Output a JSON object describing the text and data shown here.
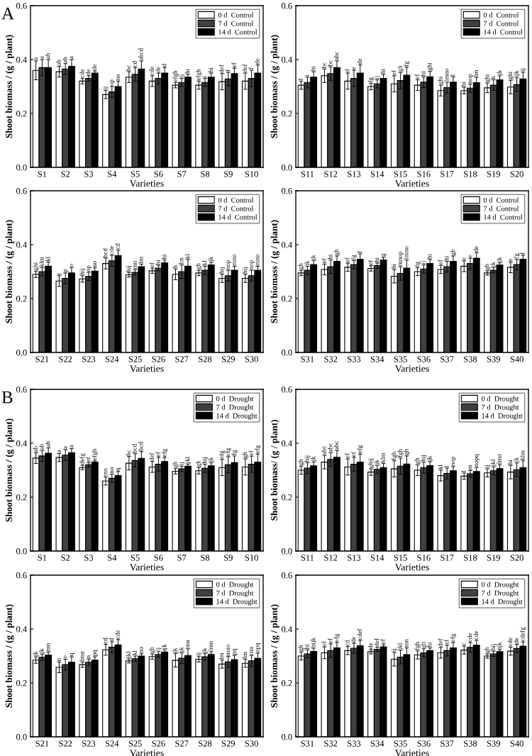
{
  "chart_data": [
    {
      "type": "bar",
      "annotations": [
        "A"
      ],
      "xlabel": "Varieties",
      "ylabel": "Shoot biomass / (g / plant)",
      "categories": [
        "S1",
        "S2",
        "S3",
        "S4",
        "S5",
        "S6",
        "S7",
        "S8",
        "S9",
        "S10"
      ],
      "ylim": [
        0,
        0.6
      ],
      "yticks": [
        {
          "value": 0,
          "label": "0.0"
        },
        {
          "value": 0.2,
          "label": "0.2"
        },
        {
          "value": 0.4,
          "label": "0.4"
        },
        {
          "value": 0.6,
          "label": "0.6"
        }
      ],
      "legend": "top right",
      "grid": false,
      "series": [
        {
          "name": "0 d  Control",
          "color": "#ffffff",
          "values": [
            0.36,
            0.355,
            0.32,
            0.27,
            0.335,
            0.32,
            0.305,
            0.305,
            0.318,
            0.32
          ],
          "errors": [
            0.035,
            0.02,
            0.01,
            0.015,
            0.02,
            0.02,
            0.01,
            0.015,
            0.03,
            0.03
          ],
          "value_labels": [
            "a",
            "ab",
            "cde",
            "ij",
            "bc",
            "cde",
            "efgh",
            "efgh",
            "def",
            "def"
          ]
        },
        {
          "name": "7 d  Control",
          "color": "#404040",
          "values": [
            0.37,
            0.365,
            0.33,
            0.28,
            0.345,
            0.33,
            0.315,
            0.315,
            0.328,
            0.33
          ],
          "errors": [
            0.03,
            0.02,
            0.01,
            0.02,
            0.025,
            0.02,
            0.015,
            0.015,
            0.025,
            0.03
          ],
          "value_labels": [
            "a",
            "ab",
            "de",
            "op",
            "cd",
            "de",
            "ij",
            "i",
            "f",
            "f"
          ]
        },
        {
          "name": "14 d  Control",
          "color": "#000000",
          "values": [
            0.37,
            0.375,
            0.35,
            0.3,
            0.365,
            0.35,
            0.335,
            0.335,
            0.348,
            0.35
          ],
          "errors": [
            0.03,
            0.025,
            0.008,
            0.02,
            0.03,
            0.02,
            0.01,
            0.015,
            0.02,
            0.03
          ],
          "value_labels": [
            "ab",
            "a",
            "de",
            "no",
            "abcd",
            "d",
            "hi",
            "hi",
            "ef",
            "de"
          ]
        }
      ]
    },
    {
      "type": "bar",
      "xlabel": "Varieties",
      "ylabel": "Shoot biomass / (g / plant)",
      "categories": [
        "S11",
        "S12",
        "S13",
        "S14",
        "S15",
        "S16",
        "S17",
        "S18",
        "S19",
        "S20"
      ],
      "ylim": [
        0,
        0.6
      ],
      "yticks": [
        {
          "value": 0,
          "label": "0.0"
        },
        {
          "value": 0.2,
          "label": "0.2"
        },
        {
          "value": 0.4,
          "label": "0.4"
        },
        {
          "value": 0.6,
          "label": "0.6"
        }
      ],
      "legend": "top right",
      "grid": false,
      "series": [
        {
          "name": "0 d  Control",
          "color": "#ffffff",
          "values": [
            0.305,
            0.34,
            0.32,
            0.3,
            0.31,
            0.305,
            0.285,
            0.285,
            0.295,
            0.298
          ],
          "errors": [
            0.015,
            0.025,
            0.03,
            0.012,
            0.03,
            0.02,
            0.02,
            0.012,
            0.018,
            0.025
          ],
          "value_labels": [
            "f",
            "bc",
            "d",
            "fg",
            "ef",
            "ef",
            "ghi",
            "hi",
            "ghi",
            "ghi"
          ]
        },
        {
          "name": "7 d  Control",
          "color": "#404040",
          "values": [
            0.315,
            0.348,
            0.33,
            0.31,
            0.322,
            0.316,
            0.296,
            0.294,
            0.305,
            0.307
          ],
          "errors": [
            0.02,
            0.025,
            0.03,
            0.015,
            0.03,
            0.02,
            0.02,
            0.015,
            0.02,
            0.025
          ],
          "value_labels": [
            "i",
            "bc",
            "e",
            "ij",
            "gh",
            "hi",
            "lmno",
            "nop",
            "k",
            "ijk"
          ]
        },
        {
          "name": "14 d  Control",
          "color": "#000000",
          "values": [
            0.335,
            0.37,
            0.35,
            0.33,
            0.342,
            0.336,
            0.316,
            0.314,
            0.325,
            0.328
          ],
          "errors": [
            0.02,
            0.025,
            0.03,
            0.015,
            0.03,
            0.02,
            0.02,
            0.02,
            0.015,
            0.025
          ],
          "value_labels": [
            "hi",
            "abc",
            "de",
            "hi",
            "fg",
            "ghi",
            "l",
            "lm",
            "jk",
            "ij"
          ]
        }
      ]
    },
    {
      "type": "bar",
      "xlabel": "Varieties",
      "ylabel": "Shoot biomass / (g / plant)",
      "categories": [
        "S21",
        "S22",
        "S23",
        "S24",
        "S25",
        "S26",
        "S27",
        "S28",
        "S29",
        "S30"
      ],
      "ylim": [
        0,
        0.6
      ],
      "yticks": [
        {
          "value": 0,
          "label": "0.0"
        },
        {
          "value": 0.2,
          "label": "0.2"
        },
        {
          "value": 0.4,
          "label": "0.4"
        },
        {
          "value": 0.6,
          "label": "0.6"
        }
      ],
      "legend": "top right",
      "grid": false,
      "series": [
        {
          "name": "0 d  Control",
          "color": "#ffffff",
          "values": [
            0.29,
            0.265,
            0.273,
            0.33,
            0.288,
            0.303,
            0.29,
            0.295,
            0.275,
            0.275
          ],
          "errors": [
            0.012,
            0.02,
            0.012,
            0.02,
            0.008,
            0.01,
            0.02,
            0.01,
            0.015,
            0.015
          ],
          "value_labels": [
            "ghi",
            "j",
            "hij",
            "bcd",
            "hij",
            "ef",
            "h",
            "gh",
            "hij",
            "hij"
          ]
        },
        {
          "name": "7 d  Control",
          "color": "#404040",
          "values": [
            0.3,
            0.275,
            0.282,
            0.34,
            0.297,
            0.313,
            0.3,
            0.305,
            0.285,
            0.285
          ],
          "errors": [
            0.015,
            0.02,
            0.015,
            0.02,
            0.01,
            0.01,
            0.025,
            0.015,
            0.02,
            0.02
          ],
          "value_labels": [
            "klm",
            "p",
            "op",
            "cde",
            "mn",
            "hi",
            "lm",
            "kl",
            "nop",
            "nop"
          ]
        },
        {
          "name": "14 d  Control",
          "color": "#000000",
          "values": [
            0.32,
            0.295,
            0.302,
            0.36,
            0.318,
            0.333,
            0.32,
            0.325,
            0.305,
            0.305
          ],
          "errors": [
            0.015,
            0.02,
            0.012,
            0.02,
            0.01,
            0.01,
            0.025,
            0.01,
            0.015,
            0.015
          ],
          "value_labels": [
            "kl",
            "o",
            "no",
            "cd",
            "lm",
            "hi",
            "kl",
            "jk",
            "mno",
            "mno"
          ]
        }
      ]
    },
    {
      "type": "bar",
      "xlabel": "Varieties",
      "ylabel": "Shoot biomass / (g / plant)",
      "categories": [
        "S31",
        "S32",
        "S33",
        "S34",
        "S35",
        "S36",
        "S37",
        "S38",
        "S39",
        "S40"
      ],
      "ylim": [
        0,
        0.6
      ],
      "yticks": [
        {
          "value": 0,
          "label": "0.0"
        },
        {
          "value": 0.2,
          "label": "0.2"
        },
        {
          "value": 0.4,
          "label": "0.4"
        },
        {
          "value": 0.6,
          "label": "0.6"
        }
      ],
      "legend": "top right",
      "grid": false,
      "series": [
        {
          "name": "0 d  Control",
          "color": "#ffffff",
          "values": [
            0.295,
            0.308,
            0.316,
            0.312,
            0.283,
            0.3,
            0.308,
            0.32,
            0.295,
            0.316
          ],
          "errors": [
            0.01,
            0.02,
            0.015,
            0.01,
            0.025,
            0.015,
            0.015,
            0.02,
            0.008,
            0.02
          ],
          "value_labels": [
            "gh",
            "ef",
            "ef",
            "ef",
            "hi",
            "fg",
            "ef",
            "e",
            "gh",
            "e"
          ]
        },
        {
          "name": "7 d  Control",
          "color": "#404040",
          "values": [
            0.305,
            0.318,
            0.326,
            0.322,
            0.293,
            0.31,
            0.318,
            0.33,
            0.305,
            0.326
          ],
          "errors": [
            0.015,
            0.025,
            0.015,
            0.01,
            0.025,
            0.015,
            0.02,
            0.02,
            0.01,
            0.02
          ],
          "value_labels": [
            "ik",
            "hi",
            "fg",
            "hi",
            "mnop",
            "ij",
            "hi",
            "e",
            "jk",
            "fg"
          ]
        },
        {
          "name": "14 d  Control",
          "color": "#000000",
          "values": [
            0.326,
            0.338,
            0.346,
            0.343,
            0.313,
            0.33,
            0.338,
            0.35,
            0.325,
            0.346
          ],
          "errors": [
            0.015,
            0.02,
            0.02,
            0.01,
            0.03,
            0.015,
            0.02,
            0.02,
            0.008,
            0.015
          ],
          "value_labels": [
            "jk",
            "gh",
            "f",
            "g",
            "lmno",
            "hi",
            "gh",
            "de",
            "jk",
            "f"
          ]
        }
      ]
    },
    {
      "type": "bar",
      "annotations": [
        "B"
      ],
      "xlabel": "Varieties",
      "ylabel": "Shoot biomass / (g / plant)",
      "categories": [
        "S1",
        "S2",
        "S3",
        "S4",
        "S5",
        "S6",
        "S7",
        "S8",
        "S9",
        "S10"
      ],
      "ylim": [
        0,
        0.6
      ],
      "yticks": [
        {
          "value": 0,
          "label": "0.0"
        },
        {
          "value": 0.2,
          "label": "0.2"
        },
        {
          "value": 0.4,
          "label": "0.4"
        },
        {
          "value": 0.6,
          "label": "0.6"
        }
      ],
      "legend": "top right",
      "grid": false,
      "series": [
        {
          "name": "0 d  Drought",
          "color": "#ffffff",
          "values": [
            0.345,
            0.347,
            0.31,
            0.26,
            0.326,
            0.312,
            0.296,
            0.298,
            0.31,
            0.312
          ],
          "errors": [
            0.02,
            0.015,
            0.008,
            0.015,
            0.025,
            0.02,
            0.01,
            0.012,
            0.03,
            0.03
          ],
          "value_labels": [
            "ab",
            "a",
            "defg",
            "mn",
            "bc",
            "def",
            "gh",
            "gh",
            "efg",
            "gh"
          ]
        },
        {
          "name": "7 d  Drought",
          "color": "#404040",
          "values": [
            0.353,
            0.356,
            0.32,
            0.27,
            0.336,
            0.322,
            0.305,
            0.307,
            0.32,
            0.322
          ],
          "errors": [
            0.02,
            0.02,
            0.008,
            0.015,
            0.025,
            0.025,
            0.01,
            0.015,
            0.03,
            0.03
          ],
          "value_labels": [
            "ab",
            "a",
            "ef",
            "no",
            "bcd",
            "ef",
            "ij",
            "hij",
            "efg",
            "ef"
          ]
        },
        {
          "name": "14 d  Drought",
          "color": "#000000",
          "values": [
            0.363,
            0.365,
            0.33,
            0.28,
            0.344,
            0.332,
            0.315,
            0.316,
            0.328,
            0.33
          ],
          "errors": [
            0.02,
            0.015,
            0.005,
            0.015,
            0.025,
            0.015,
            0.008,
            0.012,
            0.025,
            0.03
          ],
          "value_labels": [
            "ab",
            "a",
            "efgh",
            "q",
            "bcd",
            "efg",
            "jkl",
            "jk",
            "fg",
            "efg"
          ]
        }
      ]
    },
    {
      "type": "bar",
      "xlabel": "Varieties",
      "ylabel": "Shoot biomass/ (g / plant)",
      "categories": [
        "S11",
        "S12",
        "S13",
        "S14",
        "S15",
        "S16",
        "S17",
        "S18",
        "S19",
        "S20"
      ],
      "ylim": [
        0,
        0.6
      ],
      "yticks": [
        {
          "value": 0,
          "label": "0.0"
        },
        {
          "value": 0.2,
          "label": "0.2"
        },
        {
          "value": 0.4,
          "label": "0.4"
        },
        {
          "value": 0.6,
          "label": "0.6"
        }
      ],
      "legend": "top right",
      "grid": false,
      "series": [
        {
          "name": "0 d  Drought",
          "color": "#ffffff",
          "values": [
            0.3,
            0.33,
            0.312,
            0.293,
            0.305,
            0.3,
            0.28,
            0.278,
            0.29,
            0.293
          ],
          "errors": [
            0.015,
            0.025,
            0.03,
            0.012,
            0.03,
            0.02,
            0.02,
            0.012,
            0.015,
            0.025
          ],
          "value_labels": [
            "gh",
            "abc",
            "ef",
            "ghij",
            "fgh",
            "gh",
            "kl",
            "l",
            "ij",
            "hi"
          ]
        },
        {
          "name": "7 d  Drought",
          "color": "#404040",
          "values": [
            0.308,
            0.34,
            0.322,
            0.303,
            0.315,
            0.31,
            0.288,
            0.287,
            0.298,
            0.302
          ],
          "errors": [
            0.02,
            0.025,
            0.025,
            0.015,
            0.03,
            0.02,
            0.02,
            0.012,
            0.015,
            0.025
          ],
          "value_labels": [
            "hij",
            "abc",
            "ef",
            "jk",
            "fgh",
            "hij",
            "l",
            "m",
            "jkl",
            "jk"
          ]
        },
        {
          "name": "14 d  Drought",
          "color": "#000000",
          "values": [
            0.316,
            0.348,
            0.33,
            0.31,
            0.323,
            0.317,
            0.298,
            0.295,
            0.306,
            0.31
          ],
          "errors": [
            0.015,
            0.025,
            0.03,
            0.015,
            0.03,
            0.015,
            0.015,
            0.015,
            0.015,
            0.025
          ],
          "value_labels": [
            "jk",
            "abc",
            "efg",
            "klm",
            "gh",
            "jk",
            "nop",
            "nopq",
            "lmn",
            "klm"
          ]
        }
      ]
    },
    {
      "type": "bar",
      "xlabel": "Varieties",
      "ylabel": "Shoot biomass / (g / plant)",
      "categories": [
        "S21",
        "S22",
        "S23",
        "S24",
        "S25",
        "S26",
        "S27",
        "S28",
        "S29",
        "S30"
      ],
      "ylim": [
        0,
        0.6
      ],
      "yticks": [
        {
          "value": 0,
          "label": "0.0"
        },
        {
          "value": 0.2,
          "label": "0.2"
        },
        {
          "value": 0.4,
          "label": "0.4"
        },
        {
          "value": 0.6,
          "label": "0.6"
        }
      ],
      "legend": "top right",
      "grid": false,
      "series": [
        {
          "name": "0 d  Drought",
          "color": "#ffffff",
          "values": [
            0.285,
            0.258,
            0.268,
            0.323,
            0.282,
            0.298,
            0.284,
            0.288,
            0.27,
            0.273
          ],
          "errors": [
            0.012,
            0.02,
            0.01,
            0.02,
            0.008,
            0.01,
            0.025,
            0.01,
            0.015,
            0.015
          ],
          "value_labels": [
            "jk",
            "n",
            "lmn",
            "cd",
            "jkl",
            "gh",
            "jk",
            "ij",
            "lm",
            "lm"
          ]
        },
        {
          "name": "7 d  Drought",
          "color": "#404040",
          "values": [
            0.295,
            0.268,
            0.277,
            0.333,
            0.29,
            0.306,
            0.292,
            0.297,
            0.278,
            0.282
          ],
          "errors": [
            0.012,
            0.02,
            0.012,
            0.02,
            0.01,
            0.01,
            0.02,
            0.012,
            0.02,
            0.02
          ],
          "value_labels": [
            "jk",
            "o",
            "n",
            "d",
            "kl",
            "ij",
            "jk",
            "jk",
            "mno",
            "mn"
          ]
        },
        {
          "name": "14 d  Drought",
          "color": "#000000",
          "values": [
            0.303,
            0.277,
            0.285,
            0.341,
            0.3,
            0.315,
            0.302,
            0.306,
            0.287,
            0.291
          ],
          "errors": [
            0.012,
            0.02,
            0.012,
            0.02,
            0.008,
            0.008,
            0.025,
            0.01,
            0.015,
            0.02
          ],
          "value_labels": [
            "mn",
            "q",
            "pq",
            "cde",
            "no",
            "jk",
            "mn",
            "lmn",
            "pq",
            "opq"
          ]
        }
      ]
    },
    {
      "type": "bar",
      "xlabel": "Varieties",
      "ylabel": "Shoot biomass / (g / plant)",
      "categories": [
        "S31",
        "S32",
        "S33",
        "S34",
        "S35",
        "S36",
        "S37",
        "S38",
        "S39",
        "S40"
      ],
      "ylim": [
        0,
        0.6
      ],
      "yticks": [
        {
          "value": 0,
          "label": "0.0"
        },
        {
          "value": 0.2,
          "label": "0.2"
        },
        {
          "value": 0.4,
          "label": "0.4"
        },
        {
          "value": 0.6,
          "label": "0.6"
        }
      ],
      "legend": "top right",
      "grid": false,
      "series": [
        {
          "name": "0 d  Drought",
          "color": "#ffffff",
          "values": [
            0.3,
            0.312,
            0.32,
            0.316,
            0.288,
            0.304,
            0.312,
            0.322,
            0.3,
            0.318
          ],
          "errors": [
            0.015,
            0.022,
            0.015,
            0.008,
            0.025,
            0.015,
            0.02,
            0.015,
            0.008,
            0.015
          ],
          "value_labels": [
            "gh",
            "ef",
            "cd",
            "de",
            "ij",
            "fgh",
            "def",
            "c",
            "gh",
            "cde"
          ]
        },
        {
          "name": "7 d  Drought",
          "color": "#404040",
          "values": [
            0.308,
            0.32,
            0.329,
            0.325,
            0.296,
            0.312,
            0.32,
            0.332,
            0.308,
            0.328
          ],
          "errors": [
            0.015,
            0.025,
            0.018,
            0.008,
            0.025,
            0.015,
            0.02,
            0.018,
            0.01,
            0.015
          ],
          "value_labels": [
            "hi",
            "ef",
            "de",
            "def",
            "jkl",
            "gh",
            "ef",
            "cde",
            "hij",
            "de"
          ]
        },
        {
          "name": "14 d  Drought",
          "color": "#000000",
          "values": [
            0.317,
            0.33,
            0.338,
            0.334,
            0.305,
            0.32,
            0.33,
            0.34,
            0.316,
            0.337
          ],
          "errors": [
            0.012,
            0.02,
            0.02,
            0.008,
            0.025,
            0.01,
            0.02,
            0.018,
            0.008,
            0.015
          ],
          "value_labels": [
            "hijk",
            "efg",
            "cdef",
            "ef",
            "mn",
            "hi",
            "efg",
            "cde",
            "ijk",
            "cdefg"
          ]
        }
      ]
    }
  ]
}
